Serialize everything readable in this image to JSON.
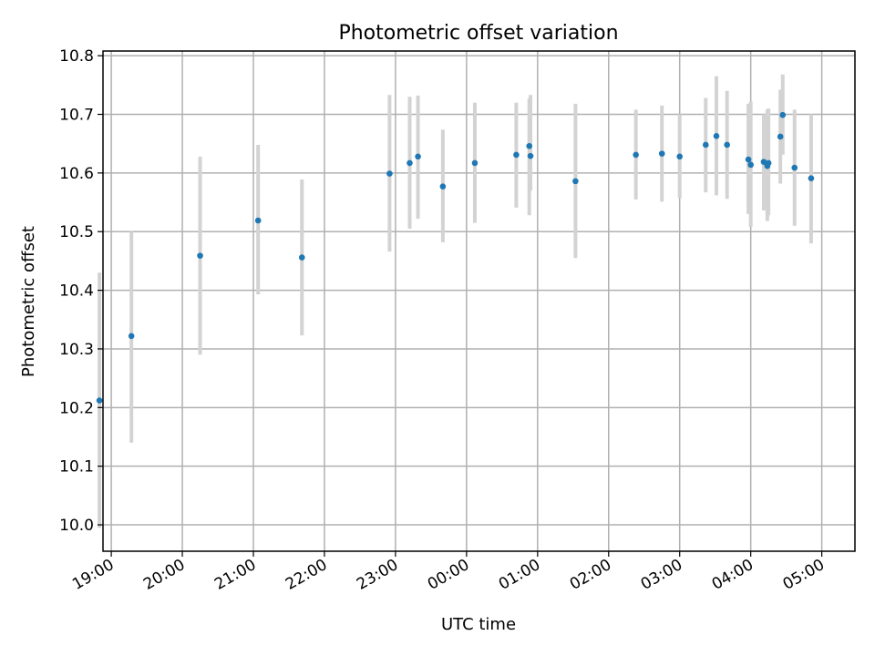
{
  "chart_data": {
    "type": "scatter",
    "title": "Photometric offset variation",
    "xlabel": "UTC time",
    "ylabel": "Photometric offset",
    "x_tick_labels": [
      "19:00",
      "20:00",
      "21:00",
      "22:00",
      "23:00",
      "00:00",
      "01:00",
      "02:00",
      "03:00",
      "04:00",
      "05:00"
    ],
    "y_tick_labels": [
      "10.0",
      "10.1",
      "10.2",
      "10.3",
      "10.4",
      "10.5",
      "10.6",
      "10.7",
      "10.8"
    ],
    "xlim": [
      "18:53",
      "05:28"
    ],
    "ylim": [
      9.955,
      10.808
    ],
    "grid": true,
    "marker_color": "#1f77b4",
    "errorbar_color": "#d3d3d3",
    "series": [
      {
        "x": [
          "18:50",
          "19:17",
          "20:15",
          "21:04",
          "21:41",
          "22:55",
          "23:12",
          "23:19",
          "23:40",
          "00:07",
          "00:42",
          "00:53",
          "00:54",
          "01:32",
          "02:23",
          "02:45",
          "03:00",
          "03:22",
          "03:31",
          "03:40",
          "03:58",
          "04:00",
          "04:11",
          "04:14",
          "04:15",
          "04:25",
          "04:27",
          "04:37",
          "04:51"
        ],
        "y": [
          10.212,
          10.322,
          10.459,
          10.519,
          10.456,
          10.599,
          10.617,
          10.628,
          10.577,
          10.617,
          10.631,
          10.646,
          10.629,
          10.586,
          10.631,
          10.633,
          10.628,
          10.648,
          10.663,
          10.648,
          10.623,
          10.614,
          10.619,
          10.612,
          10.617,
          10.662,
          10.699,
          10.609,
          10.591
        ],
        "yerr_low": [
          9.995,
          10.14,
          10.29,
          10.393,
          10.323,
          10.466,
          10.505,
          10.522,
          10.482,
          10.515,
          10.541,
          10.528,
          10.57,
          10.455,
          10.555,
          10.551,
          10.557,
          10.567,
          10.562,
          10.556,
          10.53,
          10.508,
          10.536,
          10.518,
          10.528,
          10.582,
          10.631,
          10.51,
          10.48
        ],
        "yerr_high": [
          10.43,
          10.5,
          10.628,
          10.648,
          10.589,
          10.733,
          10.73,
          10.732,
          10.674,
          10.72,
          10.72,
          10.727,
          10.733,
          10.718,
          10.708,
          10.715,
          10.7,
          10.728,
          10.765,
          10.74,
          10.718,
          10.722,
          10.7,
          10.708,
          10.71,
          10.742,
          10.768,
          10.708,
          10.7
        ]
      }
    ]
  }
}
